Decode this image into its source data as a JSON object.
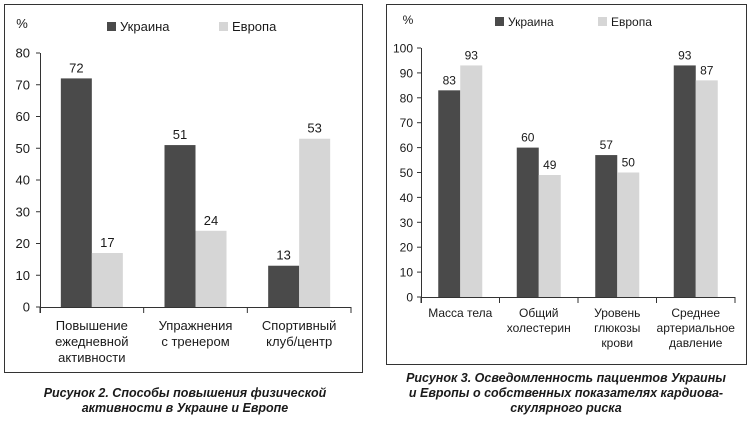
{
  "chart_data": [
    {
      "type": "bar",
      "title": "",
      "ylabel": "%",
      "xlabel": "",
      "ylim": [
        0,
        80
      ],
      "ystep": 10,
      "grid": false,
      "legend": "top",
      "categories": [
        [
          "Повышение",
          "ежедневной",
          "активности"
        ],
        [
          "Упражнения",
          "с тренером"
        ],
        [
          "Спортивный",
          "клуб/центр"
        ]
      ],
      "series": [
        {
          "name": "Украина",
          "values": [
            72,
            51,
            13
          ],
          "color": "#4a4a4a"
        },
        {
          "name": "Европа",
          "values": [
            17,
            24,
            53
          ],
          "color": "#d6d6d6"
        }
      ],
      "caption": [
        "Рисунок 2. Способы повышения физической",
        "активности в Украине и Европе"
      ]
    },
    {
      "type": "bar",
      "title": "",
      "ylabel": "%",
      "xlabel": "",
      "ylim": [
        0,
        100
      ],
      "ystep": 10,
      "grid": false,
      "legend": "top",
      "categories": [
        [
          "Масса тела"
        ],
        [
          "Общий",
          "холестерин"
        ],
        [
          "Уровень",
          "глюкозы",
          "крови"
        ],
        [
          "Среднее",
          "артериальное",
          "давление"
        ]
      ],
      "series": [
        {
          "name": "Украина",
          "values": [
            83,
            60,
            57,
            93
          ],
          "color": "#4a4a4a"
        },
        {
          "name": "Европа",
          "values": [
            93,
            49,
            50,
            87
          ],
          "color": "#d6d6d6"
        }
      ],
      "caption": [
        "Рисунок 3. Осведомленность пациентов Украины",
        "и Европы о собственных показателях кардиова-",
        "скулярного риска"
      ]
    }
  ]
}
